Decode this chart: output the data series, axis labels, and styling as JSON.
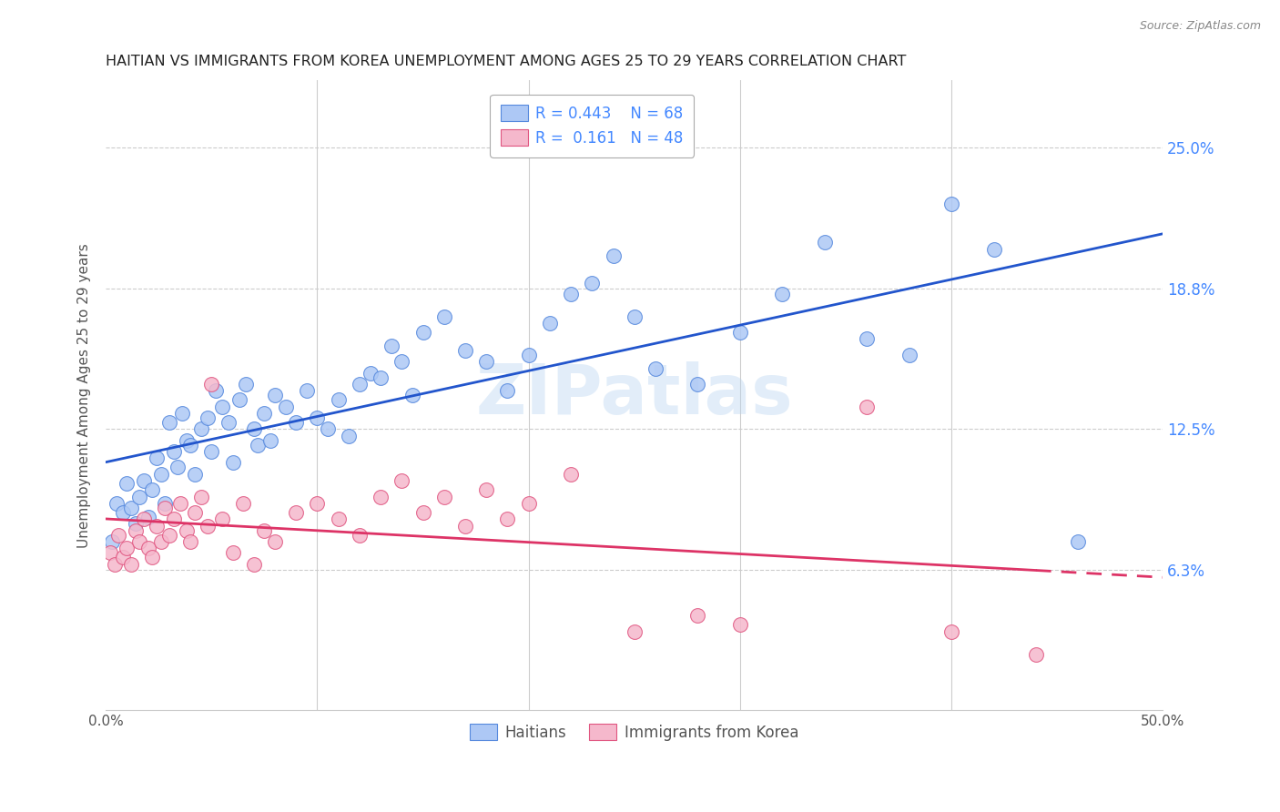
{
  "title": "HAITIAN VS IMMIGRANTS FROM KOREA UNEMPLOYMENT AMONG AGES 25 TO 29 YEARS CORRELATION CHART",
  "source": "Source: ZipAtlas.com",
  "ylabel_left": "Unemployment Among Ages 25 to 29 years",
  "legend_labels": [
    "Haitians",
    "Immigrants from Korea"
  ],
  "legend_r_blue": "R = 0.443",
  "legend_n_blue": "N = 68",
  "legend_r_pink": "R =  0.161",
  "legend_n_pink": "N = 48",
  "blue_fill": "#adc8f5",
  "blue_edge": "#5588dd",
  "pink_fill": "#f5b8cc",
  "pink_edge": "#e05580",
  "blue_line": "#2255cc",
  "pink_line": "#dd3366",
  "watermark": "ZIPatlas",
  "bg": "#ffffff",
  "title_color": "#222222",
  "right_tick_color": "#4488ff",
  "source_color": "#888888",
  "grid_color": "#cccccc",
  "blue_scatter": [
    [
      0.3,
      7.5
    ],
    [
      0.5,
      9.2
    ],
    [
      0.8,
      8.8
    ],
    [
      1.0,
      10.1
    ],
    [
      1.2,
      9.0
    ],
    [
      1.4,
      8.3
    ],
    [
      1.6,
      9.5
    ],
    [
      1.8,
      10.2
    ],
    [
      2.0,
      8.6
    ],
    [
      2.2,
      9.8
    ],
    [
      2.4,
      11.2
    ],
    [
      2.6,
      10.5
    ],
    [
      2.8,
      9.2
    ],
    [
      3.0,
      12.8
    ],
    [
      3.2,
      11.5
    ],
    [
      3.4,
      10.8
    ],
    [
      3.6,
      13.2
    ],
    [
      3.8,
      12.0
    ],
    [
      4.0,
      11.8
    ],
    [
      4.2,
      10.5
    ],
    [
      4.5,
      12.5
    ],
    [
      4.8,
      13.0
    ],
    [
      5.0,
      11.5
    ],
    [
      5.2,
      14.2
    ],
    [
      5.5,
      13.5
    ],
    [
      5.8,
      12.8
    ],
    [
      6.0,
      11.0
    ],
    [
      6.3,
      13.8
    ],
    [
      6.6,
      14.5
    ],
    [
      7.0,
      12.5
    ],
    [
      7.2,
      11.8
    ],
    [
      7.5,
      13.2
    ],
    [
      7.8,
      12.0
    ],
    [
      8.0,
      14.0
    ],
    [
      8.5,
      13.5
    ],
    [
      9.0,
      12.8
    ],
    [
      9.5,
      14.2
    ],
    [
      10.0,
      13.0
    ],
    [
      10.5,
      12.5
    ],
    [
      11.0,
      13.8
    ],
    [
      11.5,
      12.2
    ],
    [
      12.0,
      14.5
    ],
    [
      12.5,
      15.0
    ],
    [
      13.0,
      14.8
    ],
    [
      13.5,
      16.2
    ],
    [
      14.0,
      15.5
    ],
    [
      14.5,
      14.0
    ],
    [
      15.0,
      16.8
    ],
    [
      16.0,
      17.5
    ],
    [
      17.0,
      16.0
    ],
    [
      18.0,
      15.5
    ],
    [
      19.0,
      14.2
    ],
    [
      20.0,
      15.8
    ],
    [
      21.0,
      17.2
    ],
    [
      22.0,
      18.5
    ],
    [
      23.0,
      19.0
    ],
    [
      24.0,
      20.2
    ],
    [
      25.0,
      17.5
    ],
    [
      26.0,
      15.2
    ],
    [
      28.0,
      14.5
    ],
    [
      30.0,
      16.8
    ],
    [
      32.0,
      18.5
    ],
    [
      34.0,
      20.8
    ],
    [
      36.0,
      16.5
    ],
    [
      38.0,
      15.8
    ],
    [
      40.0,
      22.5
    ],
    [
      42.0,
      20.5
    ],
    [
      46.0,
      7.5
    ]
  ],
  "pink_scatter": [
    [
      0.2,
      7.0
    ],
    [
      0.4,
      6.5
    ],
    [
      0.6,
      7.8
    ],
    [
      0.8,
      6.8
    ],
    [
      1.0,
      7.2
    ],
    [
      1.2,
      6.5
    ],
    [
      1.4,
      8.0
    ],
    [
      1.6,
      7.5
    ],
    [
      1.8,
      8.5
    ],
    [
      2.0,
      7.2
    ],
    [
      2.2,
      6.8
    ],
    [
      2.4,
      8.2
    ],
    [
      2.6,
      7.5
    ],
    [
      2.8,
      9.0
    ],
    [
      3.0,
      7.8
    ],
    [
      3.2,
      8.5
    ],
    [
      3.5,
      9.2
    ],
    [
      3.8,
      8.0
    ],
    [
      4.0,
      7.5
    ],
    [
      4.2,
      8.8
    ],
    [
      4.5,
      9.5
    ],
    [
      4.8,
      8.2
    ],
    [
      5.0,
      14.5
    ],
    [
      5.5,
      8.5
    ],
    [
      6.0,
      7.0
    ],
    [
      6.5,
      9.2
    ],
    [
      7.0,
      6.5
    ],
    [
      7.5,
      8.0
    ],
    [
      8.0,
      7.5
    ],
    [
      9.0,
      8.8
    ],
    [
      10.0,
      9.2
    ],
    [
      11.0,
      8.5
    ],
    [
      12.0,
      7.8
    ],
    [
      13.0,
      9.5
    ],
    [
      14.0,
      10.2
    ],
    [
      15.0,
      8.8
    ],
    [
      16.0,
      9.5
    ],
    [
      17.0,
      8.2
    ],
    [
      18.0,
      9.8
    ],
    [
      19.0,
      8.5
    ],
    [
      20.0,
      9.2
    ],
    [
      22.0,
      10.5
    ],
    [
      25.0,
      3.5
    ],
    [
      28.0,
      4.2
    ],
    [
      30.0,
      3.8
    ],
    [
      36.0,
      13.5
    ],
    [
      40.0,
      3.5
    ],
    [
      44.0,
      2.5
    ]
  ],
  "xmin": 0.0,
  "xmax": 50.0,
  "ymin": 0.0,
  "ymax": 28.0,
  "ytick_positions": [
    6.25,
    12.5,
    18.75,
    25.0
  ],
  "ytick_labels": [
    "6.3%",
    "12.5%",
    "18.8%",
    "25.0%"
  ],
  "xtick_show": [
    0.0,
    50.0
  ],
  "xtick_grid": [
    10.0,
    20.0,
    30.0,
    40.0
  ]
}
